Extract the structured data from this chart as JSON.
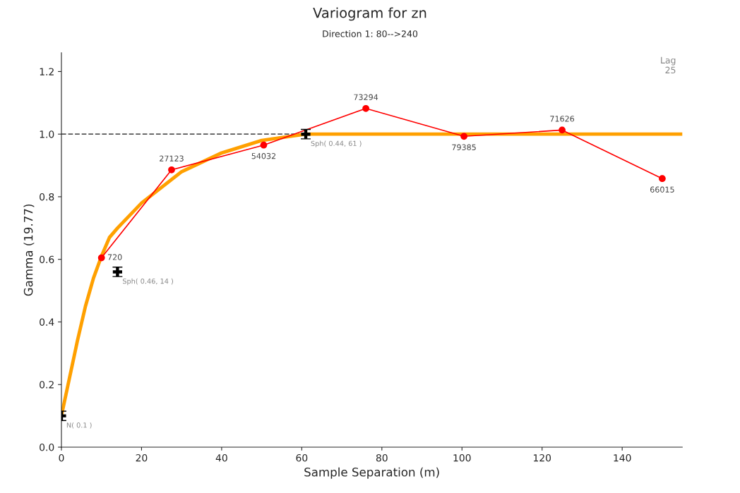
{
  "chart_data": {
    "type": "line",
    "title": "Variogram for zn",
    "subtitle": "Direction 1: 80-->240",
    "xlabel": "Sample Separation (m)",
    "ylabel": "Gamma (19.77)",
    "xlim": [
      0,
      155
    ],
    "ylim": [
      0,
      1.26
    ],
    "xticks": [
      0,
      20,
      40,
      60,
      80,
      100,
      120,
      140
    ],
    "yticks": [
      {
        "value": 0,
        "label": "0.0"
      },
      {
        "value": 0.2,
        "label": "0.2"
      },
      {
        "value": 0.4,
        "label": "0.4"
      },
      {
        "value": 0.6,
        "label": "0.6"
      },
      {
        "value": 0.8,
        "label": "0.8"
      },
      {
        "value": 1.0,
        "label": "1.0"
      },
      {
        "value": 1.2,
        "label": "1.2"
      }
    ],
    "grid": false,
    "legend": false,
    "series": [
      {
        "color": "#ffa000",
        "marker": "none",
        "x": [
          0,
          2,
          4,
          6,
          8,
          10,
          12,
          14,
          20,
          30,
          40,
          50,
          61,
          155
        ],
        "values": [
          0.1,
          0.22,
          0.34,
          0.45,
          0.54,
          0.61,
          0.67,
          0.7,
          0.78,
          0.88,
          0.94,
          0.98,
          1.0,
          1.0
        ]
      },
      {
        "color": "#ff0000",
        "marker": "circle",
        "x": [
          10,
          27.5,
          50.5,
          76,
          100.5,
          125,
          150
        ],
        "values": [
          0.605,
          0.886,
          0.965,
          1.082,
          0.993,
          1.013,
          0.858
        ]
      },
      {
        "type": "scatter",
        "color": "#000000",
        "marker": "cross",
        "x": [
          0,
          14,
          61
        ],
        "values": [
          0.1,
          0.56,
          1.0
        ],
        "errors": [
          0.015,
          0.015,
          0.015
        ]
      }
    ],
    "ref_lines": [
      {
        "axis": "y",
        "value": 1.0,
        "color": "#555555",
        "line_style": "dashed"
      }
    ],
    "annotations": [
      {
        "text": "720",
        "x": 10,
        "y": 0.605
      },
      {
        "text": "27123",
        "x": 27.5,
        "y": 0.886
      },
      {
        "text": "54032",
        "x": 50.5,
        "y": 0.965
      },
      {
        "text": "73294",
        "x": 76,
        "y": 1.082
      },
      {
        "text": "79385",
        "x": 100.5,
        "y": 0.993
      },
      {
        "text": "71626",
        "x": 125,
        "y": 1.013
      },
      {
        "text": "66015",
        "x": 150,
        "y": 0.858
      },
      {
        "text": "N( 0.1 )",
        "x": 0,
        "y": 0.1
      },
      {
        "text": "Sph( 0.46, 14 )",
        "x": 14,
        "y": 0.56
      },
      {
        "text": "Sph( 0.44, 61 )",
        "x": 61,
        "y": 1.0
      },
      "Lag\n25"
    ]
  }
}
